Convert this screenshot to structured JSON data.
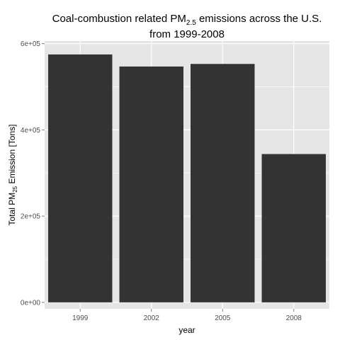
{
  "chart_data": {
    "type": "bar",
    "title": {
      "line1_prefix": "Coal-combustion related PM",
      "line1_subscript": "2.5",
      "line1_suffix": " emissions across the U.S.",
      "line2": "from 1999-2008"
    },
    "xlabel": "year",
    "ylabel": {
      "prefix": "Total PM",
      "subscript": "25",
      "suffix": " Emission [Tons]"
    },
    "categories": [
      "1999",
      "2002",
      "2005",
      "2008"
    ],
    "values": [
      575000,
      547000,
      553000,
      344000
    ],
    "ylim": [
      -15000,
      606000
    ],
    "yticks": [
      0,
      200000,
      400000,
      600000
    ],
    "ytick_labels": [
      "0e+00",
      "2e+05",
      "4e+05",
      "6e+05"
    ],
    "grid": true,
    "colors": {
      "panel": "#e5e5e5",
      "grid": "#ffffff",
      "bar": "#333333"
    }
  }
}
